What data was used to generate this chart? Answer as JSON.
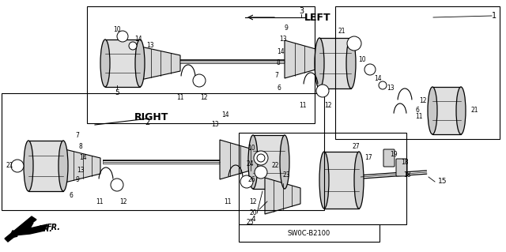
{
  "bg_color": "#ffffff",
  "line_color": "#000000",
  "text_color": "#000000",
  "diagram_code": "SW0C-B2100",
  "left_label": "LEFT",
  "right_label": "RIGHT",
  "fr_label": "FR."
}
